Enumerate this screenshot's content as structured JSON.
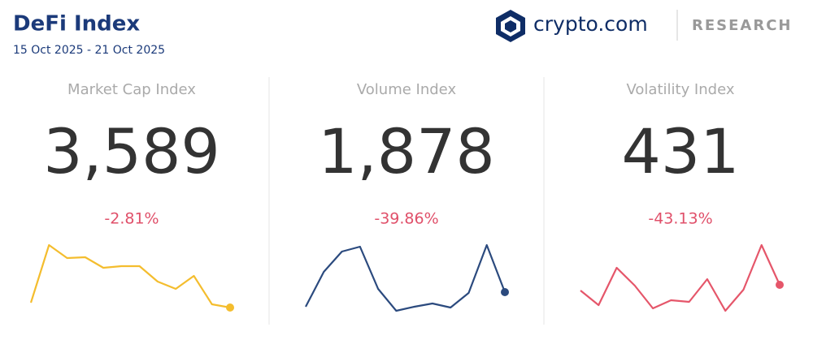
{
  "header": {
    "title": "DeFi Index",
    "date_range": "15 Oct 2025 - 21 Oct 2025",
    "brand": "crypto.com",
    "section": "RESEARCH"
  },
  "chart_data": [
    {
      "type": "line",
      "title": "Market Cap Index",
      "headline": "3,589",
      "change": "-2.81%",
      "color": "#f4bd2e",
      "values": [
        27,
        98,
        82,
        83,
        70,
        72,
        72,
        53,
        44,
        60,
        25,
        21
      ]
    },
    {
      "type": "line",
      "title": "Volume Index",
      "headline": "1,878",
      "change": "-39.86%",
      "color": "#2b4a7e",
      "values": [
        22,
        65,
        90,
        96,
        44,
        17,
        22,
        26,
        21,
        39,
        98,
        40
      ]
    },
    {
      "type": "line",
      "title": "Volatility Index",
      "headline": "431",
      "change": "-43.13%",
      "color": "#e5566a",
      "values": [
        42,
        24,
        70,
        48,
        20,
        30,
        28,
        56,
        17,
        43,
        98,
        49
      ]
    }
  ]
}
